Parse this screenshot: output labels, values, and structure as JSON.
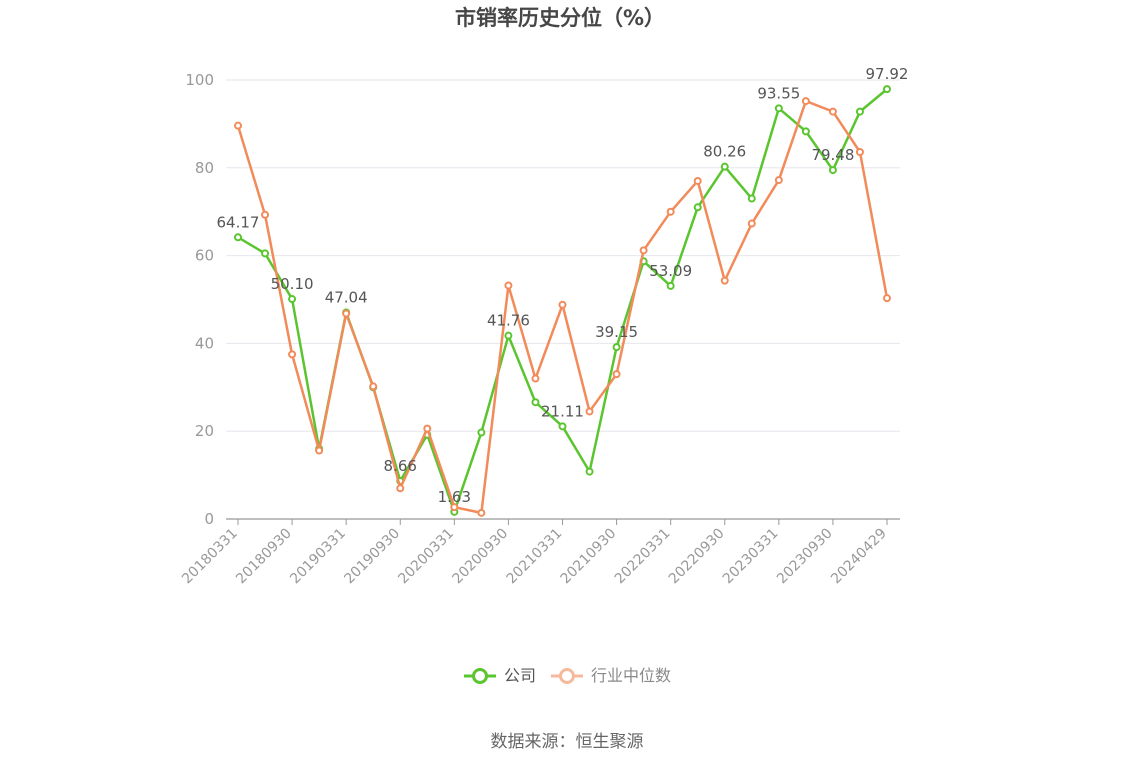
{
  "chart_data": {
    "type": "line",
    "title": "市销率历史分位（%）",
    "x": [
      "20180331",
      "20180630",
      "20180930",
      "20181231",
      "20190331",
      "20190630",
      "20190930",
      "20191231",
      "20200331",
      "20200630",
      "20200930",
      "20201231",
      "20210331",
      "20210630",
      "20210930",
      "20211231",
      "20220331",
      "20220630",
      "20220930",
      "20221231",
      "20230331",
      "20230630",
      "20230930",
      "20231231",
      "20240429"
    ],
    "x_tick_labels": [
      "20180331",
      "20180930",
      "20190331",
      "20190930",
      "20200331",
      "20200930",
      "20210331",
      "20210930",
      "20220331",
      "20220930",
      "20230331",
      "20230930",
      "20240429"
    ],
    "ylim": [
      0,
      100
    ],
    "y_ticks": [
      0,
      20,
      40,
      60,
      80,
      100
    ],
    "grid": true,
    "legend_position": "bottom",
    "series": [
      {
        "name": "公司",
        "color": "#5ac52e",
        "values": [
          64.17,
          60.5,
          50.1,
          16.0,
          47.04,
          30.0,
          8.66,
          19.2,
          1.63,
          19.7,
          41.76,
          26.6,
          21.11,
          10.8,
          39.15,
          58.7,
          53.09,
          71.0,
          80.26,
          73.0,
          93.55,
          88.3,
          79.48,
          92.8,
          97.92
        ],
        "labels": {
          "0": "64.17",
          "2": "50.10",
          "4": "47.04",
          "6": "8.66",
          "8": "1.63",
          "10": "41.76",
          "12": "21.11",
          "14": "39.15",
          "16": "53.09",
          "18": "80.26",
          "20": "93.55",
          "22": "79.48",
          "24": "97.92"
        }
      },
      {
        "name": "行业中位数",
        "color": "#f28a5a",
        "values": [
          89.6,
          69.3,
          37.5,
          15.6,
          46.8,
          30.2,
          7.0,
          20.6,
          2.7,
          1.4,
          53.2,
          32.0,
          48.8,
          24.5,
          33.0,
          61.2,
          70.0,
          77.0,
          54.3,
          67.3,
          77.2,
          95.2,
          92.8,
          83.6,
          50.3
        ]
      }
    ],
    "source": "数据来源：恒生聚源"
  }
}
